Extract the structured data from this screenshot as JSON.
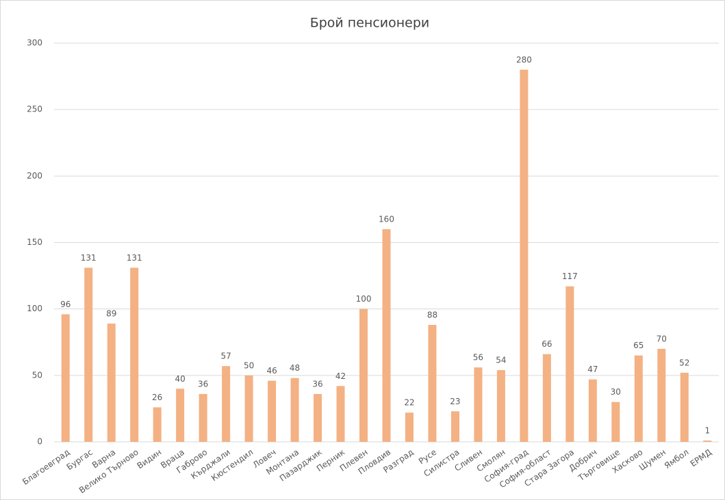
{
  "chart_data": {
    "type": "bar",
    "title": "Брой пенсионери",
    "categories": [
      "Благоевград",
      "Бургас",
      "Варна",
      "Велико Търново",
      "Видин",
      "Враца",
      "Габрово",
      "Кърджали",
      "Кюстендил",
      "Ловеч",
      "Монтана",
      "Пазарджик",
      "Перник",
      "Плевен",
      "Пловдив",
      "Разград",
      "Русе",
      "Силистра",
      "Сливен",
      "Смолян",
      "София-град",
      "София-област",
      "Стара Загора",
      "Добрич",
      "Търговище",
      "Хасково",
      "Шумен",
      "Ямбол",
      "ЕРМД"
    ],
    "values": [
      96,
      131,
      89,
      131,
      26,
      40,
      36,
      57,
      50,
      46,
      48,
      36,
      42,
      100,
      160,
      22,
      88,
      23,
      56,
      54,
      280,
      66,
      117,
      47,
      30,
      65,
      70,
      52,
      1
    ],
    "color": "#f4b183",
    "ylim": [
      0,
      300
    ],
    "yticks": [
      0,
      50,
      100,
      150,
      200,
      250,
      300
    ],
    "grid": true
  }
}
